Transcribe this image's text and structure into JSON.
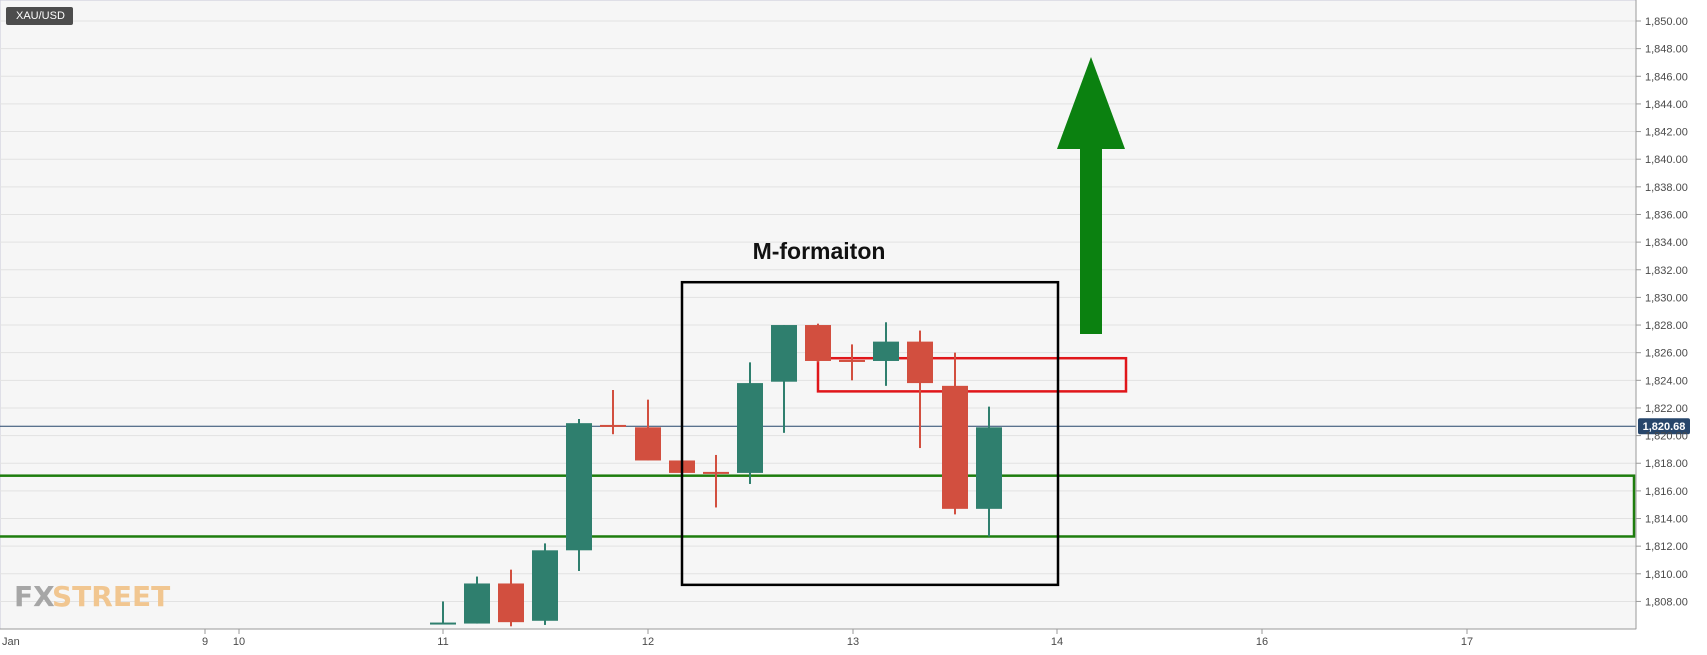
{
  "symbol": "XAU/USD",
  "watermark": {
    "fx": "FX",
    "street": "STREET"
  },
  "annotation_title": "M-formaiton",
  "chart_data": {
    "type": "candlestick",
    "title": "M-formaiton",
    "symbol": "XAU/USD",
    "ylim": [
      1806.5,
      1851
    ],
    "y_ticks": [
      "1,808.00",
      "1,810.00",
      "1,812.00",
      "1,814.00",
      "1,816.00",
      "1,818.00",
      "1,820.00",
      "1,822.00",
      "1,824.00",
      "1,826.00",
      "1,828.00",
      "1,830.00",
      "1,832.00",
      "1,834.00",
      "1,836.00",
      "1,838.00",
      "1,840.00",
      "1,842.00",
      "1,844.00",
      "1,846.00",
      "1,848.00",
      "1,850.00"
    ],
    "x_ticks": [
      "Jan",
      "9",
      "10",
      "11",
      "12",
      "13",
      "14",
      "16",
      "17"
    ],
    "current_price": "1,820.68",
    "current_price_value": 1820.68,
    "candles": [
      {
        "open": 1806.4,
        "high": 1808.0,
        "low": 1806.4,
        "close": 1806.4,
        "dir": "up"
      },
      {
        "open": 1806.4,
        "high": 1809.8,
        "low": 1806.4,
        "close": 1809.3,
        "dir": "up"
      },
      {
        "open": 1809.3,
        "high": 1810.3,
        "low": 1806.2,
        "close": 1806.5,
        "dir": "down"
      },
      {
        "open": 1806.6,
        "high": 1812.2,
        "low": 1806.3,
        "close": 1811.7,
        "dir": "up"
      },
      {
        "open": 1811.7,
        "high": 1821.2,
        "low": 1810.2,
        "close": 1820.9,
        "dir": "up"
      },
      {
        "open": 1820.7,
        "high": 1823.3,
        "low": 1820.1,
        "close": 1820.7,
        "dir": "down"
      },
      {
        "open": 1820.6,
        "high": 1822.6,
        "low": 1818.2,
        "close": 1818.2,
        "dir": "down"
      },
      {
        "open": 1818.2,
        "high": 1818.2,
        "low": 1817.3,
        "close": 1817.3,
        "dir": "down"
      },
      {
        "open": 1817.3,
        "high": 1818.6,
        "low": 1814.8,
        "close": 1817.2,
        "dir": "down"
      },
      {
        "open": 1817.3,
        "high": 1825.3,
        "low": 1816.5,
        "close": 1823.8,
        "dir": "up"
      },
      {
        "open": 1823.9,
        "high": 1828.0,
        "low": 1820.2,
        "close": 1828.0,
        "dir": "up"
      },
      {
        "open": 1828.0,
        "high": 1828.1,
        "low": 1825.3,
        "close": 1825.4,
        "dir": "down"
      },
      {
        "open": 1825.4,
        "high": 1826.6,
        "low": 1824.0,
        "close": 1825.3,
        "dir": "down"
      },
      {
        "open": 1825.4,
        "high": 1828.2,
        "low": 1823.6,
        "close": 1826.8,
        "dir": "up"
      },
      {
        "open": 1826.8,
        "high": 1827.6,
        "low": 1819.1,
        "close": 1823.8,
        "dir": "down"
      },
      {
        "open": 1823.6,
        "high": 1826.0,
        "low": 1814.3,
        "close": 1814.7,
        "dir": "down"
      },
      {
        "open": 1814.7,
        "high": 1822.1,
        "low": 1812.7,
        "close": 1820.6,
        "dir": "up"
      }
    ],
    "support_zone": [
      1812.7,
      1817.1
    ],
    "resistance_zone": [
      1823.2,
      1825.6
    ],
    "pattern_box": [
      1809.2,
      1831.1
    ],
    "colors": {
      "up": "#2f7f6e",
      "down": "#d24f3f",
      "support": "#1e7d0e",
      "resistance": "#e0161a",
      "arrow": "#0b8110",
      "price_tag": "#27466b"
    }
  }
}
